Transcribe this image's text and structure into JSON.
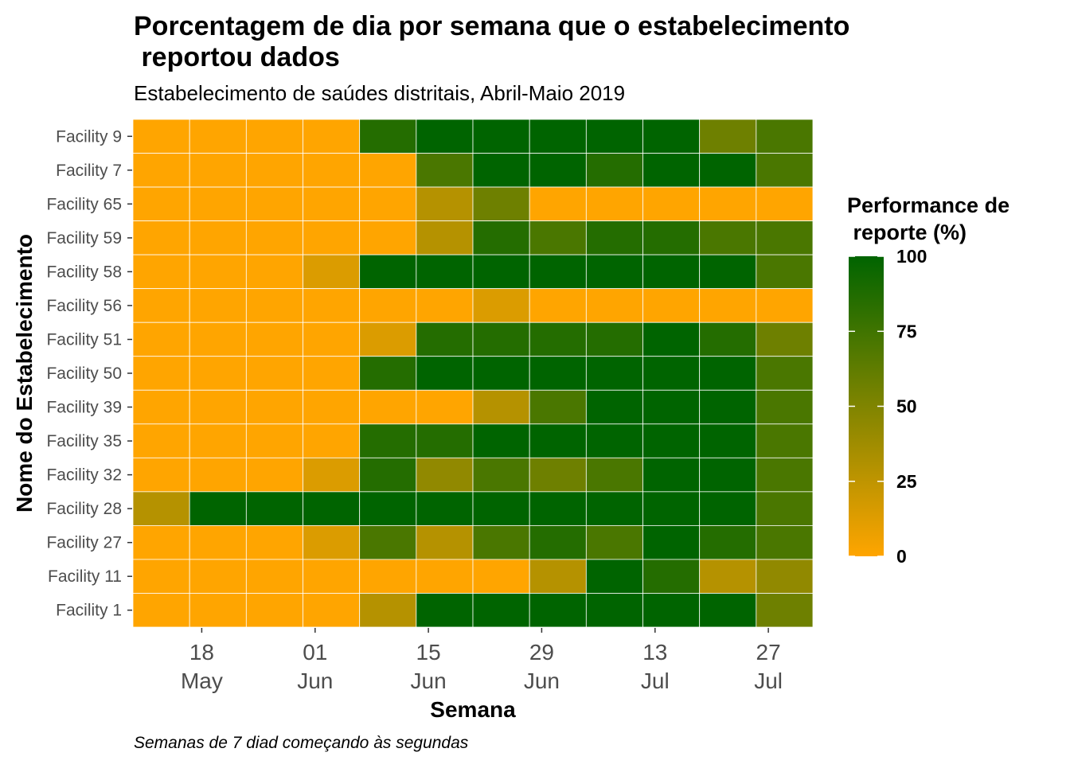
{
  "chart_data": {
    "type": "heatmap",
    "title": "Porcentagem de dia por semana que o estabelecimento\n reportou dados",
    "subtitle": "Estabelecimento de saúdes distritais, Abril-Maio 2019",
    "xlabel": "Semana",
    "ylabel": "Nome do Estabelecimento",
    "caption": "Semanas de 7 diad começando às segundas",
    "legend": {
      "title": "Performance de\n reporte (%)",
      "ticks": [
        0,
        25,
        50,
        75,
        100
      ],
      "low_color": "#FFA500",
      "high_color": "#006400",
      "position": "right"
    },
    "weeks": [
      "2019-05-13",
      "2019-05-20",
      "2019-05-27",
      "2019-06-03",
      "2019-06-10",
      "2019-06-17",
      "2019-06-24",
      "2019-07-01",
      "2019-07-08",
      "2019-07-15",
      "2019-07-22",
      "2019-07-29"
    ],
    "x_tick_labels": [
      {
        "date": "2019-05-18",
        "line1": "18",
        "line2": "May"
      },
      {
        "date": "2019-06-01",
        "line1": "01",
        "line2": "Jun"
      },
      {
        "date": "2019-06-15",
        "line1": "15",
        "line2": "Jun"
      },
      {
        "date": "2019-06-29",
        "line1": "29",
        "line2": "Jun"
      },
      {
        "date": "2019-07-13",
        "line1": "13",
        "line2": "Jul"
      },
      {
        "date": "2019-07-27",
        "line1": "27",
        "line2": "Jul"
      }
    ],
    "facilities": [
      "Facility 9",
      "Facility 7",
      "Facility 65",
      "Facility 59",
      "Facility 58",
      "Facility 56",
      "Facility 51",
      "Facility 50",
      "Facility 39",
      "Facility 35",
      "Facility 32",
      "Facility 28",
      "Facility 27",
      "Facility 11",
      "Facility 1"
    ],
    "values": [
      [
        0,
        0,
        0,
        0,
        86,
        100,
        100,
        100,
        100,
        100,
        57,
        71
      ],
      [
        0,
        0,
        0,
        0,
        0,
        71,
        100,
        100,
        86,
        100,
        100,
        71
      ],
      [
        0,
        0,
        0,
        0,
        0,
        29,
        57,
        0,
        0,
        0,
        0,
        0
      ],
      [
        0,
        0,
        0,
        0,
        0,
        29,
        86,
        71,
        86,
        86,
        71,
        71
      ],
      [
        0,
        0,
        0,
        14,
        100,
        100,
        100,
        100,
        100,
        100,
        100,
        71
      ],
      [
        0,
        0,
        0,
        0,
        0,
        0,
        14,
        0,
        0,
        0,
        0,
        0
      ],
      [
        0,
        0,
        0,
        0,
        14,
        86,
        86,
        86,
        86,
        100,
        86,
        57
      ],
      [
        0,
        0,
        0,
        0,
        86,
        100,
        100,
        100,
        100,
        100,
        100,
        71
      ],
      [
        0,
        0,
        0,
        0,
        0,
        0,
        29,
        71,
        100,
        100,
        100,
        71
      ],
      [
        0,
        0,
        0,
        0,
        86,
        86,
        100,
        100,
        100,
        100,
        100,
        71
      ],
      [
        0,
        0,
        0,
        14,
        86,
        43,
        71,
        57,
        71,
        100,
        100,
        71
      ],
      [
        29,
        100,
        100,
        100,
        100,
        100,
        100,
        100,
        100,
        100,
        100,
        71
      ],
      [
        0,
        0,
        0,
        14,
        71,
        29,
        71,
        86,
        71,
        100,
        86,
        71
      ],
      [
        0,
        0,
        0,
        0,
        0,
        0,
        0,
        29,
        100,
        86,
        29,
        43
      ],
      [
        0,
        0,
        0,
        0,
        29,
        100,
        100,
        100,
        100,
        100,
        100,
        57
      ]
    ]
  }
}
